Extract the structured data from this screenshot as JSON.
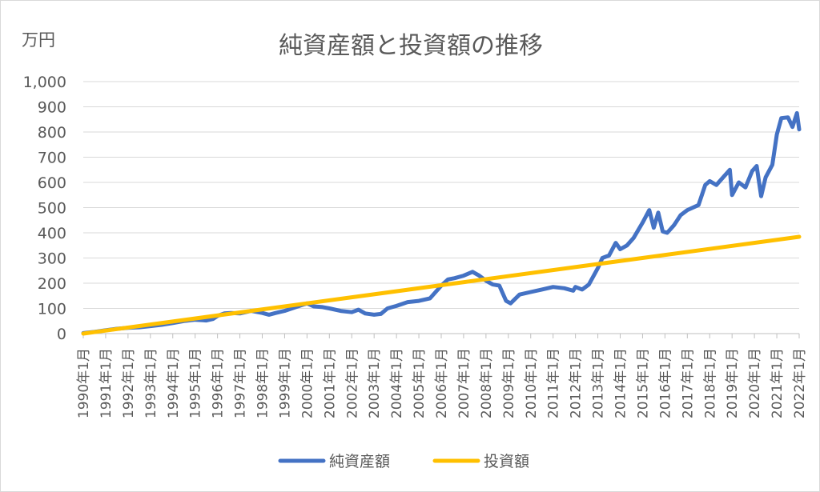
{
  "chart_data": {
    "type": "line",
    "title": "純資産額と投資額の推移",
    "ylabel": "万円",
    "ylim": [
      0,
      1000
    ],
    "yticks": [
      "0",
      "100",
      "200",
      "300",
      "400",
      "500",
      "600",
      "700",
      "800",
      "900",
      "1,000"
    ],
    "categories": [
      "1990年1月",
      "1991年1月",
      "1992年1月",
      "1993年1月",
      "1994年1月",
      "1995年1月",
      "1996年1月",
      "1997年1月",
      "1998年1月",
      "1999年1月",
      "2000年1月",
      "2001年1月",
      "2002年1月",
      "2003年1月",
      "2004年1月",
      "2005年1月",
      "2006年1月",
      "2007年1月",
      "2008年1月",
      "2009年1月",
      "2010年1月",
      "2011年1月",
      "2012年1月",
      "2013年1月",
      "2014年1月",
      "2015年1月",
      "2016年1月",
      "2017年1月",
      "2018年1月",
      "2019年1月",
      "2020年1月",
      "2021年1月",
      "2022年1月"
    ],
    "grid": true,
    "legend_position": "bottom",
    "series": [
      {
        "name": "純資産額",
        "color": "#4472c4",
        "points": [
          [
            1990.0,
            2
          ],
          [
            1990.5,
            7
          ],
          [
            1991.0,
            13
          ],
          [
            1991.5,
            19
          ],
          [
            1992.0,
            23
          ],
          [
            1992.5,
            25
          ],
          [
            1993.0,
            30
          ],
          [
            1993.5,
            35
          ],
          [
            1994.0,
            42
          ],
          [
            1994.5,
            50
          ],
          [
            1995.0,
            55
          ],
          [
            1995.5,
            52
          ],
          [
            1995.8,
            58
          ],
          [
            1996.0,
            70
          ],
          [
            1996.3,
            80
          ],
          [
            1996.6,
            82
          ],
          [
            1997.0,
            80
          ],
          [
            1997.5,
            90
          ],
          [
            1998.0,
            82
          ],
          [
            1998.3,
            75
          ],
          [
            1998.6,
            82
          ],
          [
            1999.0,
            90
          ],
          [
            1999.5,
            105
          ],
          [
            2000.0,
            120
          ],
          [
            2000.3,
            108
          ],
          [
            2000.7,
            105
          ],
          [
            2001.0,
            100
          ],
          [
            2001.5,
            90
          ],
          [
            2002.0,
            85
          ],
          [
            2002.3,
            95
          ],
          [
            2002.6,
            80
          ],
          [
            2003.0,
            75
          ],
          [
            2003.3,
            78
          ],
          [
            2003.6,
            100
          ],
          [
            2004.0,
            110
          ],
          [
            2004.5,
            125
          ],
          [
            2005.0,
            130
          ],
          [
            2005.5,
            140
          ],
          [
            2006.0,
            190
          ],
          [
            2006.3,
            215
          ],
          [
            2006.6,
            220
          ],
          [
            2007.0,
            230
          ],
          [
            2007.4,
            245
          ],
          [
            2007.7,
            230
          ],
          [
            2008.0,
            210
          ],
          [
            2008.3,
            195
          ],
          [
            2008.6,
            190
          ],
          [
            2008.9,
            130
          ],
          [
            2009.1,
            120
          ],
          [
            2009.5,
            155
          ],
          [
            2010.0,
            165
          ],
          [
            2010.5,
            175
          ],
          [
            2011.0,
            185
          ],
          [
            2011.5,
            180
          ],
          [
            2011.9,
            170
          ],
          [
            2012.0,
            185
          ],
          [
            2012.3,
            175
          ],
          [
            2012.6,
            195
          ],
          [
            2013.0,
            260
          ],
          [
            2013.2,
            300
          ],
          [
            2013.5,
            310
          ],
          [
            2013.8,
            360
          ],
          [
            2014.0,
            335
          ],
          [
            2014.3,
            350
          ],
          [
            2014.6,
            380
          ],
          [
            2015.0,
            440
          ],
          [
            2015.3,
            490
          ],
          [
            2015.5,
            420
          ],
          [
            2015.7,
            480
          ],
          [
            2015.9,
            405
          ],
          [
            2016.1,
            400
          ],
          [
            2016.4,
            430
          ],
          [
            2016.7,
            470
          ],
          [
            2017.0,
            490
          ],
          [
            2017.5,
            510
          ],
          [
            2017.8,
            590
          ],
          [
            2018.0,
            605
          ],
          [
            2018.3,
            590
          ],
          [
            2018.6,
            620
          ],
          [
            2018.9,
            650
          ],
          [
            2019.0,
            550
          ],
          [
            2019.3,
            600
          ],
          [
            2019.6,
            580
          ],
          [
            2019.9,
            645
          ],
          [
            2020.1,
            665
          ],
          [
            2020.3,
            545
          ],
          [
            2020.5,
            620
          ],
          [
            2020.8,
            670
          ],
          [
            2021.0,
            790
          ],
          [
            2021.2,
            855
          ],
          [
            2021.5,
            858
          ],
          [
            2021.7,
            820
          ],
          [
            2021.9,
            875
          ],
          [
            2022.0,
            810
          ]
        ]
      },
      {
        "name": "投資額",
        "color": "#ffc000",
        "points": [
          [
            1990.0,
            0
          ],
          [
            2022.0,
            384
          ]
        ]
      }
    ]
  }
}
